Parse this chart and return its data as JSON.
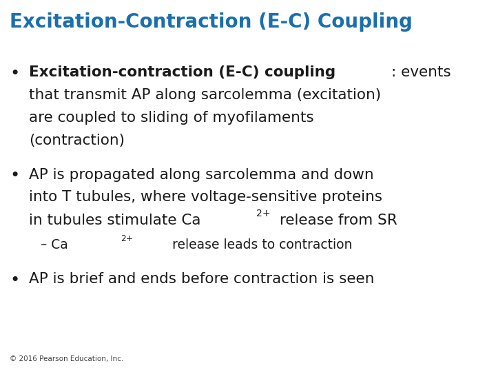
{
  "title": "Excitation-Contraction (E-C) Coupling",
  "title_color": "#1B6FAD",
  "title_fontsize": 20,
  "background_color": "#FFFFFF",
  "copyright": "© 2016 Pearson Education, Inc.",
  "copyright_fontsize": 7.5,
  "body_fontsize": 15.5,
  "sub_fontsize": 13.5,
  "text_color": "#1a1a1a",
  "line1_bold": "Excitation-contraction (E-C) coupling",
  "line1_normal": ": events",
  "line1b": "that transmit AP along sarcolemma (excitation)",
  "line1c": "are coupled to sliding of myofilaments",
  "line1d": "(contraction)",
  "line2a": "AP is propagated along sarcolemma and down",
  "line2b": "into T tubules, where voltage-sensitive proteins",
  "line2c_pre": "in tubules stimulate Ca",
  "line2c_sup": "2+",
  "line2c_post": " release from SR",
  "line3_pre": "– Ca",
  "line3_sup": "2+",
  "line3_post": " release leads to contraction",
  "line4": "AP is brief and ends before contraction is seen",
  "bullet": "•",
  "dash": "–"
}
